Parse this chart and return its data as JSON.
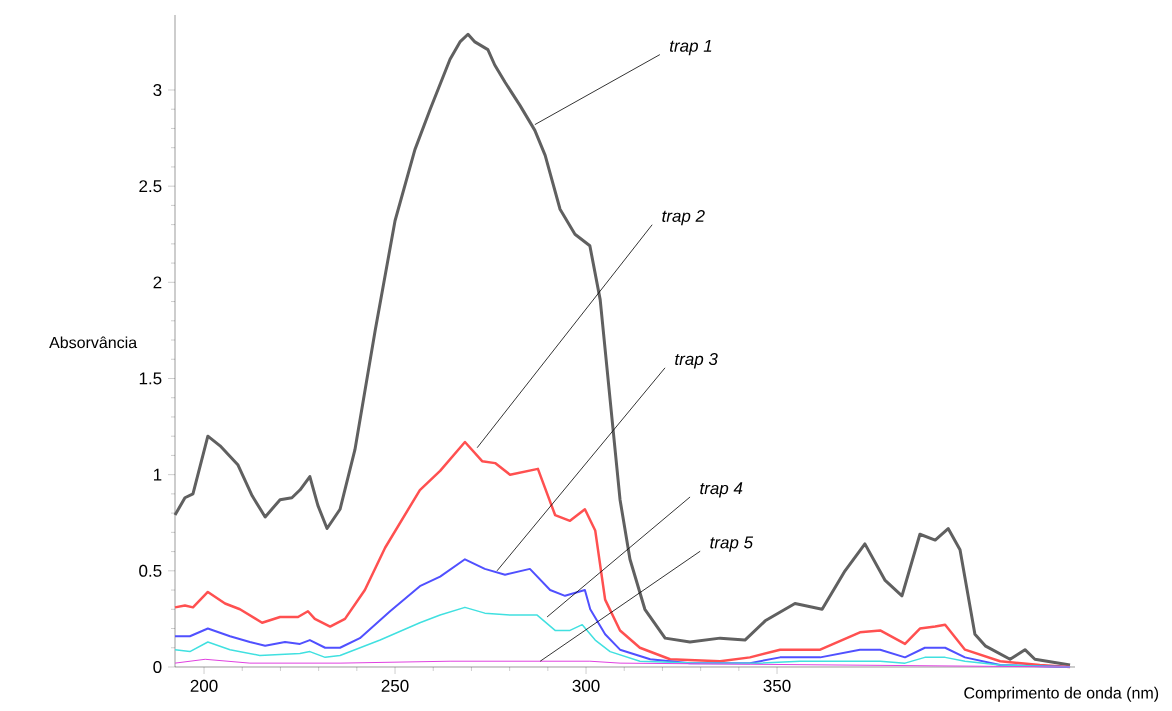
{
  "chart_data": {
    "type": "line",
    "xlabel": "Comprimento de onda (nm)",
    "ylabel": "Absorvância",
    "xlim": [
      192.4,
      428
    ],
    "ylim": [
      0,
      3.39
    ],
    "xticks": [
      200,
      250,
      300,
      350
    ],
    "yticks": [
      0,
      0.5,
      1,
      1.5,
      2,
      2.5,
      3
    ],
    "marker": "none",
    "line_style": "solid",
    "series": [
      {
        "color": "#606060",
        "x": [
          192.4,
          195,
          197.1,
          201,
          204.2,
          208.9,
          212.6,
          216,
          219.9,
          223,
          225.1,
          227.7,
          229.8,
          232.2,
          235.6,
          239.5,
          244.8,
          250,
          255.2,
          259.2,
          264.4,
          267,
          269.1,
          270.9,
          274.3,
          276.1,
          278.8,
          282.7,
          286.6,
          289.3,
          293.2,
          297.1,
          301,
          303.7,
          306.3,
          308.9,
          311.5,
          315.4,
          320.7,
          327.2,
          335.1,
          341.6,
          346.9,
          354.7,
          361.8,
          367.8,
          373,
          378.3,
          382.7,
          387.4,
          391.4,
          394.8,
          397.9,
          401.8,
          404.5,
          411,
          414.9,
          417.5,
          426.7
        ],
        "values": [
          0.79,
          0.88,
          0.9,
          1.2,
          1.15,
          1.05,
          0.89,
          0.78,
          0.87,
          0.88,
          0.92,
          0.99,
          0.84,
          0.72,
          0.82,
          1.13,
          1.75,
          2.32,
          2.69,
          2.9,
          3.16,
          3.25,
          3.29,
          3.25,
          3.21,
          3.13,
          3.04,
          2.92,
          2.79,
          2.66,
          2.38,
          2.25,
          2.19,
          1.91,
          1.39,
          0.87,
          0.56,
          0.3,
          0.15,
          0.13,
          0.15,
          0.14,
          0.24,
          0.33,
          0.3,
          0.5,
          0.64,
          0.45,
          0.37,
          0.69,
          0.66,
          0.72,
          0.61,
          0.17,
          0.11,
          0.04,
          0.09,
          0.04,
          0.01
        ]
      },
      {
        "color": "#ff5050",
        "x": [
          192.4,
          195,
          197.1,
          201,
          205.5,
          209.4,
          215.2,
          219.9,
          224.6,
          227.2,
          229,
          233,
          236.9,
          242.1,
          247.4,
          256.5,
          261.8,
          268.3,
          272.8,
          276.2,
          280.1,
          287.4,
          291.9,
          295.8,
          299.7,
          302.4,
          305,
          308.9,
          314.1,
          322,
          335.1,
          342.9,
          350.8,
          361.3,
          371.7,
          377,
          383.5,
          387.4,
          391.4,
          394,
          399.2,
          408.4,
          418.8,
          426.7
        ],
        "values": [
          0.31,
          0.32,
          0.31,
          0.39,
          0.33,
          0.3,
          0.23,
          0.26,
          0.26,
          0.29,
          0.25,
          0.21,
          0.25,
          0.4,
          0.62,
          0.92,
          1.02,
          1.17,
          1.07,
          1.06,
          1,
          1.03,
          0.79,
          0.76,
          0.82,
          0.71,
          0.35,
          0.19,
          0.1,
          0.04,
          0.03,
          0.05,
          0.09,
          0.09,
          0.18,
          0.19,
          0.12,
          0.2,
          0.21,
          0.22,
          0.09,
          0.03,
          0.01,
          0
        ]
      },
      {
        "color": "#5050ff",
        "x": [
          192.4,
          196.3,
          201,
          206.8,
          212,
          216,
          221.2,
          225.1,
          227.7,
          231.7,
          235.6,
          240.8,
          248.7,
          256.5,
          261.8,
          268.3,
          273.5,
          278.8,
          285.3,
          290.6,
          294.5,
          299.7,
          301.1,
          305,
          308.9,
          316.8,
          327.2,
          342.9,
          350.8,
          361.3,
          371.7,
          377,
          383.5,
          388.7,
          394,
          399.2,
          408.4,
          426.7
        ],
        "values": [
          0.16,
          0.16,
          0.2,
          0.16,
          0.13,
          0.11,
          0.13,
          0.12,
          0.14,
          0.1,
          0.1,
          0.15,
          0.29,
          0.42,
          0.47,
          0.56,
          0.51,
          0.48,
          0.51,
          0.4,
          0.37,
          0.4,
          0.3,
          0.17,
          0.09,
          0.04,
          0.02,
          0.02,
          0.05,
          0.05,
          0.09,
          0.09,
          0.05,
          0.1,
          0.1,
          0.05,
          0.01,
          0
        ]
      },
      {
        "color": "#40e0e0",
        "x": [
          192.4,
          196.3,
          201,
          206.8,
          214.6,
          225.1,
          227.7,
          231.7,
          235.6,
          246.1,
          256.5,
          261.8,
          268.3,
          273.5,
          280.1,
          287.2,
          291.9,
          295.8,
          299,
          302.4,
          306.3,
          314.1,
          329.8,
          345.5,
          356,
          366.5,
          377,
          383.5,
          388.7,
          394,
          399.2,
          408.4,
          426.7
        ],
        "values": [
          0.09,
          0.08,
          0.13,
          0.09,
          0.06,
          0.07,
          0.08,
          0.05,
          0.06,
          0.14,
          0.23,
          0.27,
          0.31,
          0.28,
          0.27,
          0.27,
          0.19,
          0.19,
          0.22,
          0.14,
          0.08,
          0.03,
          0.02,
          0.02,
          0.03,
          0.03,
          0.03,
          0.02,
          0.05,
          0.05,
          0.03,
          0.01,
          0
        ]
      },
      {
        "color": "#e040e0",
        "x": [
          192.4,
          200.3,
          212,
          235.6,
          264.4,
          301,
          308.9,
          426.7
        ],
        "values": [
          0.02,
          0.04,
          0.02,
          0.02,
          0.03,
          0.03,
          0.02,
          0
        ]
      }
    ],
    "annotations": [
      {
        "text": "*trap 1*",
        "x": 286.6,
        "y": 2.82
      },
      {
        "text": "*trap 2*",
        "x": 271.5,
        "y": 1.14
      },
      {
        "text": "*trap 3*",
        "x": 276.7,
        "y": 0.5
      },
      {
        "text": "*trap 4*",
        "x": 289.8,
        "y": 0.26
      },
      {
        "text": "*trap 5*",
        "x": 288,
        "y": 0.03
      }
    ]
  }
}
